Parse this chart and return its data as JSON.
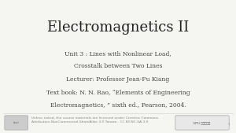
{
  "title": "Electromagnetics II",
  "line1": "Unit 3 : Lines with Nonlinear Load,",
  "line2": "Crosstalk between Two Lines",
  "line3": "Lecturer: Professor Jean-Fu Kiang",
  "line4": "Text book: N. N. Rao, “Elements of Engineering",
  "line5": "Electromagnetics, ” sixth ed., Pearson, 2004.",
  "footer_text": "Unless noted, the course materials are licensed under Creative Commons\nAttribution-NonCommercial-ShareAlike 3.0 Taiwan,  CC BY-NC-SA 3.0",
  "page_number": "1",
  "bg_color": "#f5f5f2",
  "title_color": "#222222",
  "body_color": "#444444",
  "footer_color": "#888888",
  "title_fontsize": 13,
  "body_fontsize": 5.5,
  "footer_fontsize": 3.2
}
